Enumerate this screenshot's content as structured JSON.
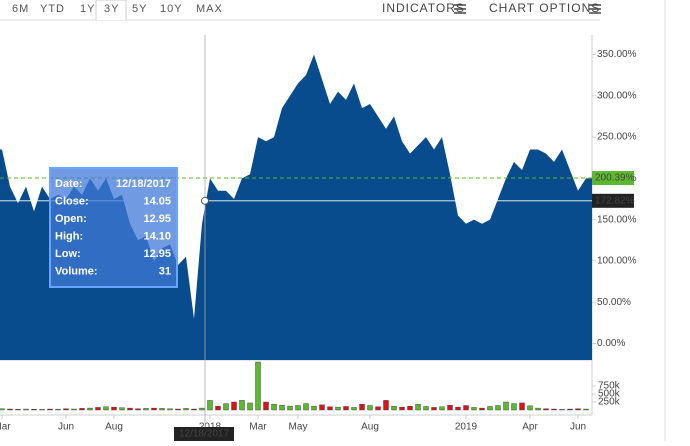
{
  "toolbar": {
    "ranges": [
      "6M",
      "YTD",
      "1Y",
      "3Y",
      "5Y",
      "10Y",
      "MAX"
    ],
    "selected": 3,
    "indicators": "INDICATORS",
    "chart_options": "CHART OPTIONS"
  },
  "chart_data": [
    {
      "type": "area",
      "color": "#084c8d",
      "categories": [
        "Mar",
        null,
        null,
        null,
        null,
        null,
        null,
        null,
        "Jun",
        null,
        null,
        null,
        null,
        null,
        "Aug",
        null,
        null,
        null,
        null,
        null,
        null,
        null,
        null,
        null,
        null,
        null,
        "2018",
        null,
        null,
        null,
        null,
        null,
        "Mar",
        null,
        null,
        null,
        null,
        "May",
        null,
        null,
        null,
        null,
        null,
        null,
        null,
        null,
        "Aug",
        null,
        null,
        null,
        null,
        null,
        null,
        null,
        null,
        null,
        null,
        null,
        "2019",
        null,
        null,
        null,
        null,
        null,
        null,
        null,
        "Apr",
        null,
        null,
        null,
        null,
        null,
        "Jun",
        null
      ],
      "values": [
        235,
        190,
        170,
        190,
        160,
        190,
        175,
        180,
        175,
        190,
        180,
        200,
        185,
        200,
        175,
        180,
        145,
        125,
        130,
        100,
        115,
        120,
        95,
        105,
        30,
        145,
        200,
        185,
        185,
        175,
        200,
        205,
        250,
        245,
        250,
        285,
        300,
        315,
        325,
        350,
        320,
        290,
        305,
        295,
        315,
        285,
        290,
        275,
        260,
        275,
        245,
        230,
        240,
        250,
        235,
        250,
        205,
        155,
        145,
        150,
        145,
        150,
        175,
        200,
        220,
        210,
        235,
        235,
        230,
        220,
        235,
        210,
        185,
        200
      ],
      "ylim": [
        -20,
        370
      ],
      "yticks": [
        {
          "value": 0,
          "label": "0.00%"
        },
        {
          "value": 50,
          "label": "50.00%"
        },
        {
          "value": 100,
          "label": "100.00%"
        },
        {
          "value": 150,
          "label": "150.00%"
        },
        {
          "value": 200,
          "label": "200.00%"
        },
        {
          "value": 250,
          "label": "250.00%"
        },
        {
          "value": 300,
          "label": "300.00%"
        },
        {
          "value": 350,
          "label": "350.00%"
        }
      ],
      "last_price": {
        "value": 200.39,
        "label": "200.39%",
        "color": "#5cb82e"
      },
      "crosshair": {
        "value": 172.82,
        "label": "172.82%",
        "date": "12/18/2017"
      }
    },
    {
      "type": "bar",
      "up_color": "#5cb82e",
      "down_color": "#d9141d",
      "values": [
        40000,
        30000,
        20000,
        30000,
        25000,
        20000,
        30000,
        20000,
        40000,
        30000,
        50000,
        60000,
        80000,
        100000,
        90000,
        70000,
        60000,
        40000,
        50000,
        60000,
        50000,
        40000,
        30000,
        50000,
        30000,
        60000,
        300000,
        120000,
        200000,
        250000,
        300000,
        220000,
        1500000,
        250000,
        180000,
        150000,
        120000,
        140000,
        200000,
        120000,
        160000,
        100000,
        90000,
        110000,
        80000,
        180000,
        140000,
        100000,
        300000,
        120000,
        90000,
        120000,
        180000,
        110000,
        80000,
        100000,
        150000,
        90000,
        140000,
        80000,
        60000,
        110000,
        140000,
        250000,
        200000,
        220000,
        130000,
        60000,
        40000,
        30000,
        20000,
        30000,
        40000,
        30000
      ],
      "ylim": [
        0,
        1500000
      ],
      "yticks": [
        {
          "value": 250000,
          "label": "250k"
        },
        {
          "value": 500000,
          "label": "500k"
        },
        {
          "value": 750000,
          "label": "750k"
        }
      ]
    }
  ],
  "tooltip": {
    "rows": [
      {
        "label": "Date:",
        "value": "12/18/2017"
      },
      {
        "label": "Close:",
        "value": "14.05"
      },
      {
        "label": "Open:",
        "value": "12.95"
      },
      {
        "label": "High:",
        "value": "14.10"
      },
      {
        "label": "Low:",
        "value": "12.95"
      },
      {
        "label": "Volume:",
        "value": "31"
      }
    ]
  }
}
